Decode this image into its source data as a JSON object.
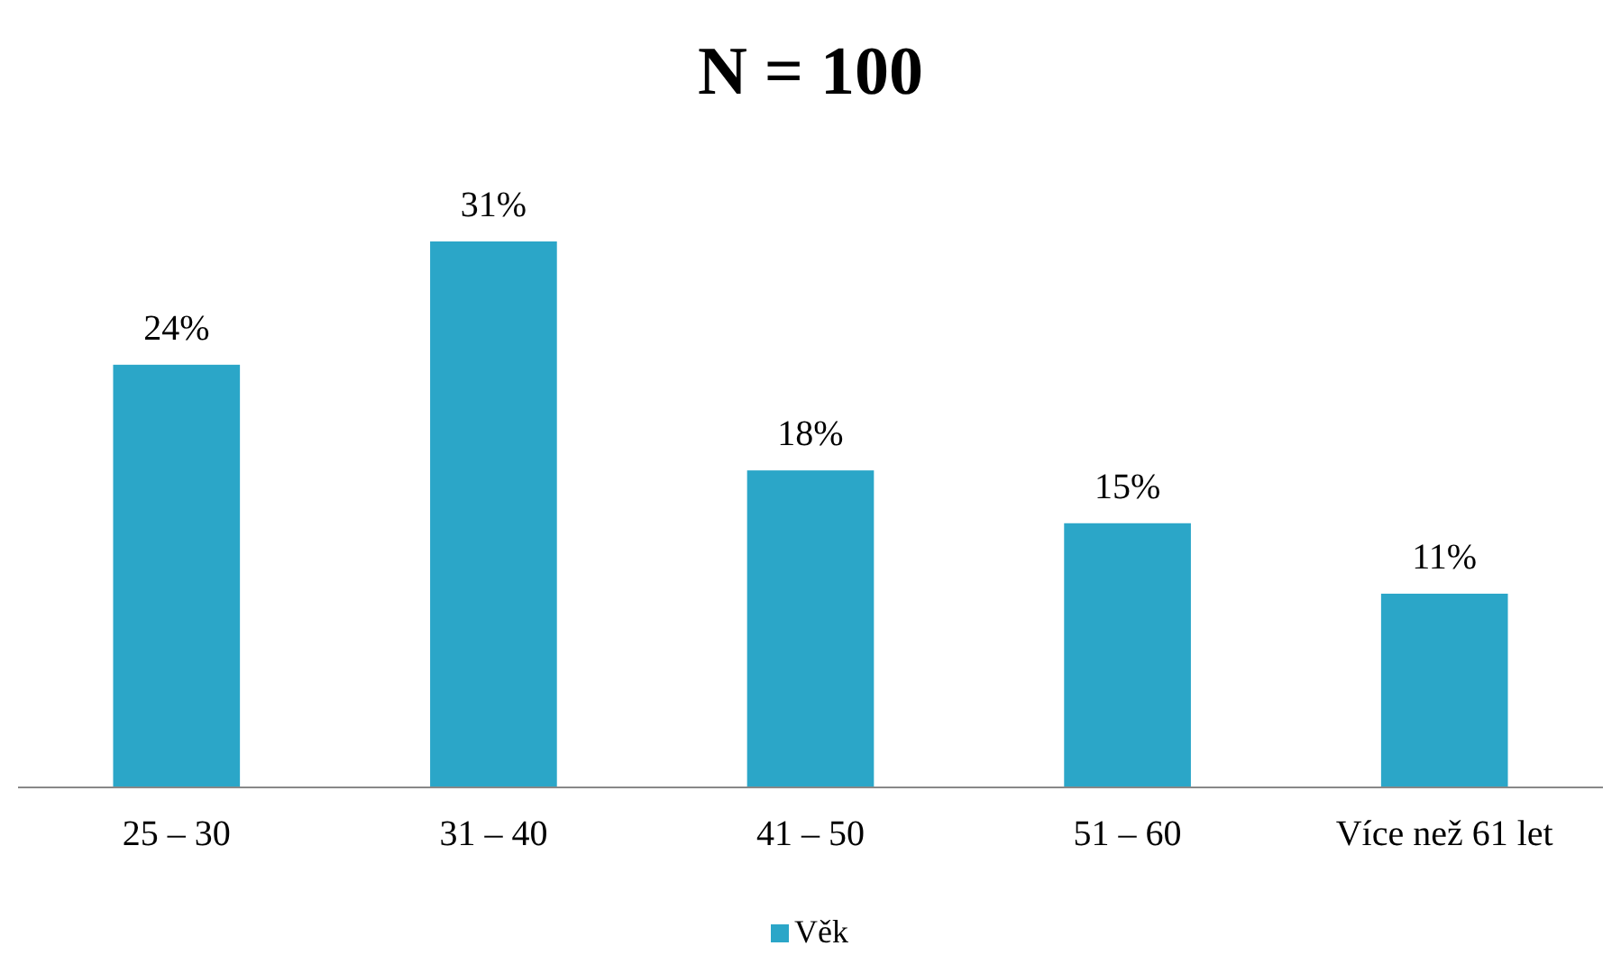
{
  "chart_data": {
    "type": "bar",
    "title": "N = 100",
    "categories": [
      "25 – 30",
      "31 – 40",
      "41 – 50",
      "51 – 60",
      "Více než 61 let"
    ],
    "series": [
      {
        "name": "Věk",
        "color": "#2ba6c8",
        "values": [
          24,
          31,
          18,
          15,
          11
        ],
        "value_labels": [
          "24%",
          "31%",
          "18%",
          "15%",
          "11%"
        ]
      }
    ],
    "tick_labels": "x",
    "legend": "bottom"
  }
}
